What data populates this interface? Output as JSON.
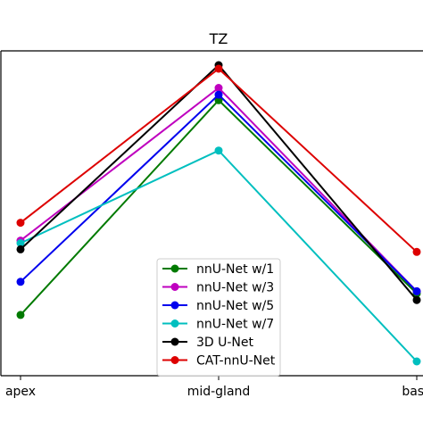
{
  "chart_data": {
    "type": "line",
    "title": "TZ",
    "xlabel": "",
    "ylabel": "",
    "categories": [
      "apex",
      "mid-gland",
      "base"
    ],
    "ylim": [
      0,
      100
    ],
    "grid": false,
    "legend_position": "lower center",
    "series": [
      {
        "name": "nnU-Net w/1",
        "color": "#007a00",
        "values": [
          18.7,
          84.8,
          25.3
        ]
      },
      {
        "name": "nnU-Net w/3",
        "color": "#bf00bf",
        "values": [
          41.6,
          88.6,
          26.0
        ]
      },
      {
        "name": "nnU-Net w/5",
        "color": "#0000ee",
        "values": [
          28.9,
          86.5,
          26.0
        ]
      },
      {
        "name": "nnU-Net w/7",
        "color": "#00bfbf",
        "values": [
          40.8,
          69.3,
          4.4
        ]
      },
      {
        "name": "3D U-Net",
        "color": "#000000",
        "values": [
          38.9,
          95.6,
          23.3
        ]
      },
      {
        "name": "CAT-nnU-Net",
        "color": "#dd0000",
        "values": [
          47.1,
          94.5,
          38.1
        ]
      }
    ]
  }
}
